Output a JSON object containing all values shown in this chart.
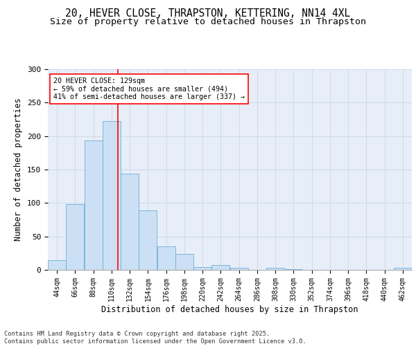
{
  "title_line1": "20, HEVER CLOSE, THRAPSTON, KETTERING, NN14 4XL",
  "title_line2": "Size of property relative to detached houses in Thrapston",
  "xlabel": "Distribution of detached houses by size in Thrapston",
  "ylabel": "Number of detached properties",
  "bar_edges": [
    44,
    66,
    88,
    110,
    132,
    154,
    176,
    198,
    220,
    242,
    264,
    286,
    308,
    330,
    352,
    374,
    396,
    418,
    440,
    462,
    484
  ],
  "bar_heights": [
    15,
    98,
    193,
    222,
    144,
    89,
    35,
    24,
    4,
    7,
    3,
    0,
    3,
    1,
    0,
    0,
    0,
    0,
    0,
    3
  ],
  "bar_color": "#cce0f5",
  "bar_edgecolor": "#6aaed6",
  "grid_color": "#d0d8e8",
  "bg_color": "#e8eef8",
  "vline_x": 129,
  "vline_color": "red",
  "annotation_text": "20 HEVER CLOSE: 129sqm\n← 59% of detached houses are smaller (494)\n41% of semi-detached houses are larger (337) →",
  "ylim": [
    0,
    300
  ],
  "yticks": [
    0,
    50,
    100,
    150,
    200,
    250,
    300
  ],
  "footer_text": "Contains HM Land Registry data © Crown copyright and database right 2025.\nContains public sector information licensed under the Open Government Licence v3.0.",
  "title_fontsize": 10.5,
  "subtitle_fontsize": 9.5,
  "tick_fontsize": 7,
  "label_fontsize": 8.5
}
